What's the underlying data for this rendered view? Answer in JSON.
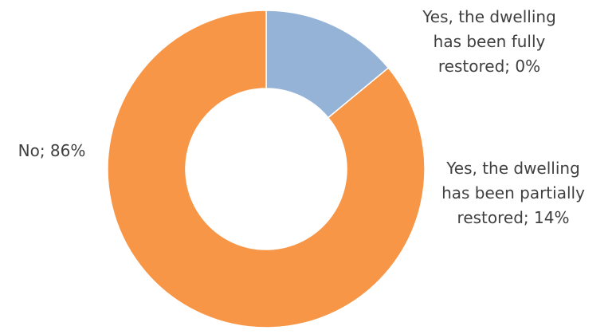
{
  "chart_data": {
    "type": "pie",
    "variant": "doughnut",
    "slices": [
      {
        "name": "Yes, the dwelling has been fully restored",
        "value": 0,
        "color": "#4472c4"
      },
      {
        "name": "Yes, the dwelling has been partially restored",
        "value": 14,
        "color": "#95b3d7"
      },
      {
        "name": "No",
        "value": 86,
        "color": "#f79646"
      }
    ],
    "data_labels": {
      "full": [
        "Yes, the dwelling",
        "has been fully",
        "restored; 0%"
      ],
      "partial": [
        "Yes, the dwelling",
        "has been partially",
        "restored; 14%"
      ],
      "no": [
        "No; 86%"
      ]
    },
    "legend": "none"
  }
}
